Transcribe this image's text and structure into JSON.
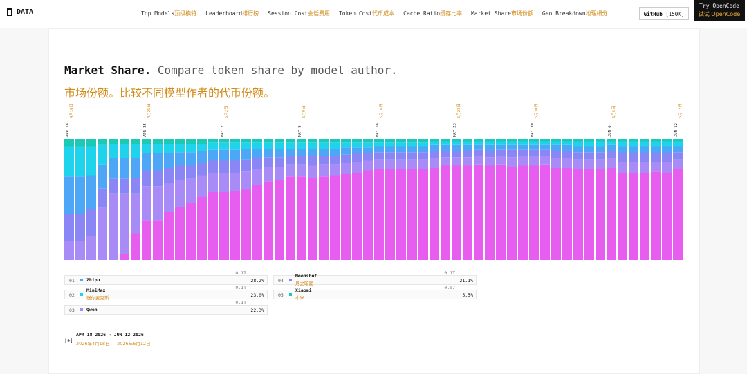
{
  "header": {
    "logo": "DATA",
    "github": "GitHub",
    "github_count": "[150K]",
    "try_en": "Try OpenCode",
    "try_zh": "试试 OpenCode"
  },
  "nav": [
    {
      "en": "Top Models",
      "zh": "顶级模特"
    },
    {
      "en": "Leaderboard",
      "zh": "排行榜"
    },
    {
      "en": "Session Cost",
      "zh": "会话费用"
    },
    {
      "en": "Token Cost",
      "zh": "代币成本"
    },
    {
      "en": "Cache Ratio",
      "zh": "缓存比率"
    },
    {
      "en": "Market Share",
      "zh": "市场份额"
    },
    {
      "en": "Geo Breakdown",
      "zh": "地理细分"
    }
  ],
  "page": {
    "title": "Market Share.",
    "title_rest": "Compare token share by model author.",
    "subtitle": "市场份额。比较不同模型作者的代币份额。"
  },
  "chart_data": {
    "type": "stacked_bar",
    "ylim": [
      0,
      100
    ],
    "categories": [
      "APR 18",
      null,
      null,
      null,
      null,
      null,
      null,
      "APR 25",
      null,
      null,
      null,
      null,
      null,
      null,
      "MAY 2",
      null,
      null,
      null,
      null,
      null,
      null,
      "MAY 9",
      null,
      null,
      null,
      null,
      null,
      null,
      "MAY 16",
      null,
      null,
      null,
      null,
      null,
      null,
      "MAY 23",
      null,
      null,
      null,
      null,
      null,
      null,
      "MAY 30",
      null,
      null,
      null,
      null,
      null,
      null,
      "JUN 6",
      null,
      null,
      null,
      null,
      null,
      "JUN 12"
    ],
    "categories_zh": [
      "4月18日",
      null,
      null,
      null,
      null,
      null,
      null,
      "4月25日",
      null,
      null,
      null,
      null,
      null,
      null,
      "5月2日",
      null,
      null,
      null,
      null,
      null,
      null,
      "5月9日",
      null,
      null,
      null,
      null,
      null,
      null,
      "5月16日",
      null,
      null,
      null,
      null,
      null,
      null,
      "5月23日",
      null,
      null,
      null,
      null,
      null,
      null,
      "5月30日",
      null,
      null,
      null,
      null,
      null,
      null,
      "6月6日",
      null,
      null,
      null,
      null,
      null,
      "6月12日"
    ],
    "series": [
      {
        "color": "#e75df0",
        "values": [
          0,
          0,
          0,
          0,
          0,
          5,
          22,
          33,
          33,
          40,
          44,
          47,
          52,
          56,
          56,
          57,
          58,
          62,
          65,
          66,
          69,
          69,
          68,
          69,
          70,
          71,
          72,
          74,
          75,
          75,
          75,
          75,
          75,
          76,
          78,
          78,
          78,
          79,
          78,
          79,
          77,
          78,
          78,
          79,
          76,
          76,
          75,
          75,
          75,
          76,
          72,
          72,
          72,
          73,
          72,
          75
        ]
      },
      {
        "name": "Qwen",
        "color": "#a98bf7",
        "values": [
          16,
          16,
          20,
          43,
          55,
          50,
          33,
          28,
          28,
          24,
          22,
          20,
          18,
          16,
          16,
          15,
          15,
          13,
          12,
          11,
          10,
          10,
          10,
          10,
          9,
          9,
          9,
          8,
          8,
          8,
          8,
          8,
          8,
          8,
          7,
          7,
          7,
          7,
          7,
          7,
          8,
          8,
          8,
          7,
          8,
          8,
          8,
          8,
          8,
          8,
          9,
          9,
          9,
          8,
          9,
          8
        ]
      },
      {
        "name": "Moonshot",
        "color": "#8a86f5",
        "values": [
          22,
          22,
          22,
          16,
          12,
          12,
          13,
          13,
          13,
          12,
          12,
          11,
          10,
          10,
          10,
          10,
          10,
          9,
          8,
          8,
          7,
          7,
          8,
          7,
          7,
          7,
          7,
          6,
          6,
          6,
          6,
          6,
          6,
          6,
          5,
          5,
          5,
          5,
          5,
          5,
          6,
          5,
          5,
          5,
          6,
          6,
          6,
          6,
          6,
          6,
          7,
          7,
          7,
          7,
          7,
          6
        ]
      },
      {
        "name": "Zhipu",
        "color": "#4ea6f7",
        "values": [
          31,
          31,
          28,
          20,
          17,
          17,
          16,
          14,
          14,
          12,
          11,
          11,
          10,
          9,
          9,
          9,
          9,
          8,
          7,
          7,
          6,
          6,
          6,
          6,
          6,
          6,
          5,
          5,
          5,
          5,
          5,
          5,
          5,
          5,
          5,
          5,
          5,
          4,
          5,
          4,
          4,
          4,
          4,
          4,
          5,
          5,
          5,
          5,
          5,
          5,
          6,
          6,
          6,
          6,
          6,
          5
        ]
      },
      {
        "name": "MiniMax",
        "color": "#1fd3ec",
        "values": [
          25,
          25,
          24,
          16,
          12,
          12,
          12,
          8,
          8,
          8,
          7,
          7,
          6,
          6,
          6,
          6,
          5,
          5,
          5,
          5,
          5,
          5,
          5,
          5,
          5,
          4,
          4,
          4,
          3,
          3,
          3,
          3,
          3,
          3,
          3,
          3,
          3,
          3,
          3,
          3,
          3,
          3,
          3,
          3,
          3,
          3,
          4,
          4,
          4,
          3,
          4,
          4,
          4,
          4,
          4,
          4
        ]
      },
      {
        "name": "Xiaomi",
        "color": "#1cc9b4",
        "values": [
          6,
          6,
          6,
          5,
          4,
          4,
          4,
          4,
          4,
          4,
          4,
          4,
          4,
          3,
          3,
          3,
          3,
          3,
          3,
          3,
          3,
          3,
          3,
          3,
          3,
          3,
          3,
          3,
          3,
          3,
          3,
          3,
          3,
          2,
          2,
          2,
          2,
          2,
          2,
          2,
          2,
          2,
          2,
          2,
          2,
          2,
          2,
          2,
          2,
          2,
          2,
          2,
          2,
          2,
          2,
          2
        ]
      }
    ]
  },
  "legend": [
    {
      "rank": "01",
      "name": "Zhipu",
      "color": "#4ea6f7",
      "tokens": "0.1T",
      "share": "28.2%"
    },
    {
      "rank": "02",
      "name": "MiniMax",
      "zh": "迷你麦克斯",
      "color": "#1fd3ec",
      "tokens": "0.1T",
      "share": "23.0%"
    },
    {
      "rank": "03",
      "name": "Qwen",
      "color": "#a98bf7",
      "tokens": "0.1T",
      "share": "22.3%"
    },
    {
      "rank": "04",
      "name": "Moonshot",
      "zh": "月之暗面",
      "color": "#8a86f5",
      "tokens": "0.1T",
      "share": "21.1%"
    },
    {
      "rank": "05",
      "name": "Xiaomi",
      "zh": "小米",
      "color": "#1cc9b4",
      "tokens": "0.07",
      "share": "5.5%"
    }
  ],
  "footer": {
    "range": "APR 18 2026 → JUN 12 2026",
    "range_zh": "2026年4月18日 — 2026年6月12日",
    "toggle": "[+]"
  }
}
